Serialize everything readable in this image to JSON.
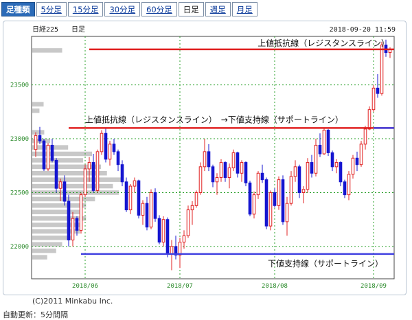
{
  "tabs": {
    "header": "足種類",
    "items": [
      {
        "label": "5分足",
        "active": false
      },
      {
        "label": "15分足",
        "active": false
      },
      {
        "label": "30分足",
        "active": false
      },
      {
        "label": "60分足",
        "active": false
      },
      {
        "label": "日足",
        "active": true
      },
      {
        "label": "週足",
        "active": false
      },
      {
        "label": "月足",
        "active": false
      }
    ]
  },
  "chart_header": {
    "name": "日経225",
    "period": "日足",
    "timestamp": "2018-09-20 11:59"
  },
  "footer": {
    "copyright": "(C)2011 Minkabu Inc.",
    "update": "自動更新：5分間隔"
  },
  "chart_data": {
    "type": "candlestick",
    "ylim": [
      21700,
      23950
    ],
    "yticks": [
      22000,
      22500,
      23000,
      23500
    ],
    "xticks": [
      {
        "label": "2018/06",
        "index": 12
      },
      {
        "label": "2018/07",
        "index": 35
      },
      {
        "label": "2018/08",
        "index": 58
      },
      {
        "label": "2018/09",
        "index": 82
      }
    ],
    "colors": {
      "up": "#e02020",
      "down": "#1515d0",
      "resistance": "#e02020",
      "support": "#4040e0",
      "volume_profile": "#c8c8c8",
      "grid": "#2aa02a"
    },
    "candles": [
      [
        22900,
        23060,
        22830,
        23030
      ],
      [
        23030,
        23110,
        22950,
        22980
      ],
      [
        22980,
        23000,
        22700,
        22720
      ],
      [
        22720,
        22960,
        22700,
        22940
      ],
      [
        22940,
        23000,
        22780,
        22800
      ],
      [
        22800,
        22820,
        22500,
        22540
      ],
      [
        22540,
        22630,
        22420,
        22600
      ],
      [
        22600,
        22660,
        22380,
        22420
      ],
      [
        22420,
        22480,
        22000,
        22060
      ],
      [
        22060,
        22320,
        22000,
        22260
      ],
      [
        22260,
        22280,
        22100,
        22150
      ],
      [
        22150,
        22500,
        22120,
        22480
      ],
      [
        22480,
        22760,
        22460,
        22720
      ],
      [
        22720,
        22830,
        22600,
        22780
      ],
      [
        22780,
        22860,
        22500,
        22520
      ],
      [
        22520,
        22900,
        22500,
        22880
      ],
      [
        22880,
        23080,
        22850,
        23050
      ],
      [
        23050,
        23100,
        22780,
        22810
      ],
      [
        22810,
        22980,
        22750,
        22950
      ],
      [
        22950,
        23000,
        22850,
        22880
      ],
      [
        22880,
        22900,
        22700,
        22760
      ],
      [
        22760,
        22800,
        22560,
        22600
      ],
      [
        22600,
        22640,
        22320,
        22340
      ],
      [
        22340,
        22580,
        22300,
        22560
      ],
      [
        22560,
        22640,
        22500,
        22610
      ],
      [
        22610,
        22620,
        22260,
        22290
      ],
      [
        22290,
        22430,
        22200,
        22400
      ],
      [
        22400,
        22460,
        22150,
        22180
      ],
      [
        22180,
        22530,
        22160,
        22500
      ],
      [
        22500,
        22540,
        22230,
        22260
      ],
      [
        22260,
        22290,
        22020,
        22040
      ],
      [
        22040,
        22280,
        22000,
        22250
      ],
      [
        22250,
        22270,
        21900,
        21930
      ],
      [
        21930,
        22060,
        21780,
        22000
      ],
      [
        22000,
        22100,
        21880,
        21920
      ],
      [
        21920,
        22080,
        21800,
        22040
      ],
      [
        22040,
        22150,
        21980,
        22100
      ],
      [
        22100,
        22380,
        22080,
        22340
      ],
      [
        22340,
        22420,
        22200,
        22380
      ],
      [
        22380,
        22520,
        22360,
        22500
      ],
      [
        22500,
        22780,
        22480,
        22740
      ],
      [
        22740,
        23000,
        22700,
        22880
      ],
      [
        22880,
        22950,
        22700,
        22740
      ],
      [
        22740,
        22760,
        22550,
        22600
      ],
      [
        22600,
        22680,
        22480,
        22640
      ],
      [
        22640,
        22810,
        22600,
        22780
      ],
      [
        22780,
        22790,
        22600,
        22640
      ],
      [
        22640,
        22770,
        22540,
        22730
      ],
      [
        22730,
        22900,
        22700,
        22870
      ],
      [
        22870,
        22880,
        22640,
        22680
      ],
      [
        22680,
        22800,
        22600,
        22780
      ],
      [
        22780,
        22790,
        22560,
        22590
      ],
      [
        22590,
        22610,
        22280,
        22300
      ],
      [
        22300,
        22510,
        22260,
        22480
      ],
      [
        22480,
        22700,
        22440,
        22680
      ],
      [
        22680,
        22760,
        22590,
        22620
      ],
      [
        22620,
        22640,
        22160,
        22190
      ],
      [
        22190,
        22520,
        22150,
        22500
      ],
      [
        22500,
        22540,
        22360,
        22380
      ],
      [
        22380,
        22650,
        22340,
        22620
      ],
      [
        22620,
        22660,
        22200,
        22230
      ],
      [
        22230,
        22460,
        22100,
        22400
      ],
      [
        22400,
        22700,
        22380,
        22650
      ],
      [
        22650,
        22800,
        22600,
        22740
      ],
      [
        22740,
        22760,
        22450,
        22500
      ],
      [
        22500,
        22560,
        22400,
        22530
      ],
      [
        22530,
        22820,
        22500,
        22780
      ],
      [
        22780,
        22850,
        22640,
        22680
      ],
      [
        22680,
        23000,
        22650,
        22940
      ],
      [
        22940,
        23050,
        22830,
        22860
      ],
      [
        22860,
        23100,
        22850,
        23080
      ],
      [
        23080,
        23090,
        22840,
        22870
      ],
      [
        22870,
        22890,
        22700,
        22740
      ],
      [
        22740,
        22810,
        22680,
        22780
      ],
      [
        22780,
        22790,
        22560,
        22600
      ],
      [
        22600,
        22620,
        22450,
        22480
      ],
      [
        22480,
        22700,
        22430,
        22670
      ],
      [
        22670,
        22850,
        22630,
        22820
      ],
      [
        22820,
        22880,
        22700,
        22760
      ],
      [
        22760,
        22980,
        22740,
        22950
      ],
      [
        22950,
        23120,
        22900,
        23090
      ],
      [
        23090,
        23300,
        23080,
        23270
      ],
      [
        23270,
        23500,
        23250,
        23470
      ],
      [
        23470,
        23600,
        23380,
        23420
      ],
      [
        23420,
        23900,
        23400,
        23870
      ],
      [
        23870,
        23920,
        23760,
        23800
      ],
      [
        23800,
        23850,
        23750,
        23830
      ]
    ],
    "volume_profile": [
      {
        "price": 23820,
        "width": 0.5
      },
      {
        "price": 23320,
        "width": 0.19
      },
      {
        "price": 23260,
        "width": 0.12
      },
      {
        "price": 23060,
        "width": 0.2
      },
      {
        "price": 22980,
        "width": 0.3
      },
      {
        "price": 22920,
        "width": 0.6
      },
      {
        "price": 22860,
        "width": 1.0
      },
      {
        "price": 22800,
        "width": 0.85
      },
      {
        "price": 22740,
        "width": 1.15
      },
      {
        "price": 22680,
        "width": 1.25
      },
      {
        "price": 22620,
        "width": 1.5
      },
      {
        "price": 22560,
        "width": 1.35
      },
      {
        "price": 22500,
        "width": 1.45
      },
      {
        "price": 22440,
        "width": 1.05
      },
      {
        "price": 22380,
        "width": 0.9
      },
      {
        "price": 22320,
        "width": 0.82
      },
      {
        "price": 22260,
        "width": 0.9
      },
      {
        "price": 22200,
        "width": 0.8
      },
      {
        "price": 22140,
        "width": 0.8
      },
      {
        "price": 22080,
        "width": 0.65
      },
      {
        "price": 22020,
        "width": 0.5
      },
      {
        "price": 21960,
        "width": 0.4
      },
      {
        "price": 21900,
        "width": 0.25
      }
    ],
    "lines": [
      {
        "label": "上値抵抗線（レジスタンスライン）",
        "price": 23830,
        "start_index": 13,
        "kind": "resistance"
      },
      {
        "label": "上値抵抗線（レジスタンスライン）　→下値支持線（サポートライン）",
        "price": 23100,
        "start_index": 8,
        "kind": "resistance_to_support"
      },
      {
        "label": "下値支持線（サポートライン）",
        "price": 21930,
        "start_index": 11,
        "kind": "support"
      }
    ]
  }
}
